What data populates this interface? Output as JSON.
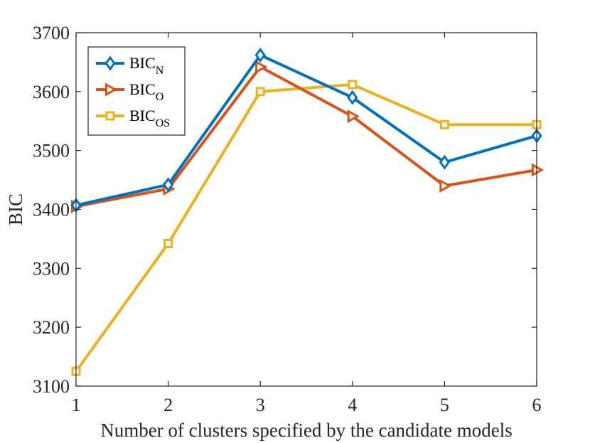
{
  "chart_data": {
    "type": "line",
    "title": "",
    "xlabel": "Number of clusters specified by the candidate models",
    "ylabel": "BIC",
    "x": [
      1,
      2,
      3,
      4,
      5,
      6
    ],
    "xlim": [
      1,
      6
    ],
    "ylim": [
      3100,
      3700
    ],
    "xticks": [
      "1",
      "2",
      "3",
      "4",
      "5",
      "6"
    ],
    "yticks": [
      "3100",
      "3200",
      "3300",
      "3400",
      "3500",
      "3600",
      "3700"
    ],
    "grid": false,
    "legend_position": "top-left",
    "series": [
      {
        "name": "BIC_N",
        "label_base": "BIC",
        "label_sub": "N",
        "color": "#0072BD",
        "marker": "diamond",
        "values": [
          3407,
          3442,
          3662,
          3590,
          3480,
          3525
        ]
      },
      {
        "name": "BIC_O",
        "label_base": "BIC",
        "label_sub": "O",
        "color": "#D95319",
        "marker": "triangle-right",
        "values": [
          3405,
          3435,
          3642,
          3558,
          3440,
          3467
        ]
      },
      {
        "name": "BIC_OS",
        "label_base": "BIC",
        "label_sub": "OS",
        "color": "#EDB120",
        "marker": "square",
        "values": [
          3125,
          3342,
          3600,
          3612,
          3544,
          3544
        ]
      }
    ]
  }
}
